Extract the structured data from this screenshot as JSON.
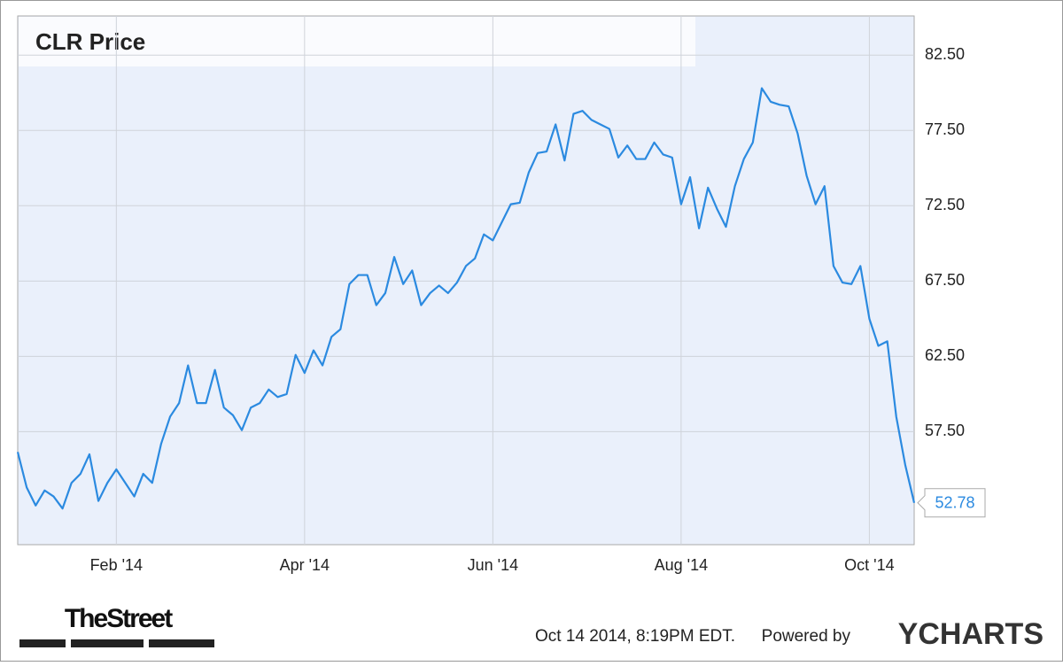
{
  "chart_data": {
    "type": "line",
    "title": "CLR Price",
    "categories": [
      null,
      null,
      null,
      null,
      null,
      null,
      null,
      null,
      null,
      null,
      null,
      "Feb '14",
      null,
      null,
      null,
      null,
      null,
      null,
      null,
      null,
      null,
      null,
      null,
      null,
      null,
      null,
      null,
      null,
      null,
      null,
      null,
      null,
      "Apr '14",
      null,
      null,
      null,
      null,
      null,
      null,
      null,
      null,
      null,
      null,
      null,
      null,
      null,
      null,
      null,
      null,
      null,
      null,
      null,
      null,
      "Jun '14",
      null,
      null,
      null,
      null,
      null,
      null,
      null,
      null,
      null,
      null,
      null,
      null,
      null,
      null,
      null,
      null,
      null,
      null,
      null,
      null,
      "Aug '14",
      null,
      null,
      null,
      null,
      null,
      null,
      null,
      null,
      null,
      null,
      null,
      null,
      null,
      null,
      null,
      null,
      null,
      null,
      null,
      null,
      "Oct '14",
      null,
      null,
      null,
      null,
      null
    ],
    "values": [
      56.15,
      53.8,
      52.6,
      53.6,
      53.2,
      52.4,
      54.1,
      54.7,
      56.0,
      52.9,
      54.1,
      55.0,
      54.1,
      53.2,
      54.7,
      54.1,
      56.7,
      58.5,
      59.4,
      61.9,
      59.4,
      59.4,
      61.6,
      59.1,
      58.6,
      57.6,
      59.1,
      59.4,
      60.3,
      59.8,
      60.0,
      62.6,
      61.4,
      62.9,
      61.9,
      63.8,
      64.3,
      67.3,
      67.9,
      67.9,
      65.9,
      66.7,
      69.1,
      67.3,
      68.2,
      65.9,
      66.7,
      67.2,
      66.7,
      67.4,
      68.5,
      69.0,
      70.6,
      70.2,
      71.4,
      72.6,
      72.7,
      74.7,
      76.0,
      76.1,
      77.9,
      75.5,
      78.6,
      78.8,
      78.2,
      77.9,
      77.6,
      75.7,
      76.5,
      75.6,
      75.6,
      76.7,
      75.9,
      75.7,
      72.6,
      74.4,
      71.0,
      73.7,
      72.3,
      71.1,
      73.8,
      75.6,
      76.7,
      80.3,
      79.4,
      79.2,
      79.1,
      77.3,
      74.5,
      72.6,
      73.8,
      68.5,
      67.4,
      67.3,
      68.5,
      65.0,
      63.2,
      63.5,
      58.5,
      55.3,
      52.78
    ],
    "color": "#2b8ae0",
    "ylim": [
      50,
      85.1
    ],
    "yticks": [
      {
        "value": 57.5,
        "label": "57.50"
      },
      {
        "value": 62.5,
        "label": "62.50"
      },
      {
        "value": 67.5,
        "label": "67.50"
      },
      {
        "value": 72.5,
        "label": "72.50"
      },
      {
        "value": 77.5,
        "label": "77.50"
      },
      {
        "value": 82.5,
        "label": "82.50"
      }
    ],
    "grid": true
  },
  "footer": {
    "publisher": "TheStreet",
    "timestamp": "Oct 14 2014, 8:19PM EDT.",
    "powered_by": "Powered by",
    "brand": "YCHARTS"
  }
}
